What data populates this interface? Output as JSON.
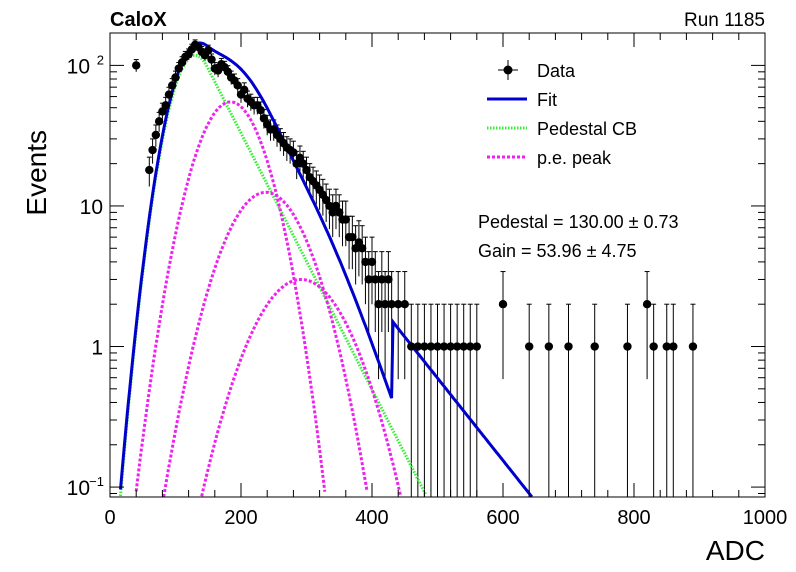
{
  "header": {
    "left_label": "CaloX",
    "right_label": "Run 1185"
  },
  "chart_data": {
    "type": "scatter",
    "xlabel": "ADC",
    "ylabel": "Events",
    "xlim": [
      0,
      1000
    ],
    "ylim": [
      0.085,
      170
    ],
    "y_scale": "log",
    "x_ticks": [
      "0",
      "200",
      "400",
      "600",
      "800",
      "1000"
    ],
    "y_ticks": [
      {
        "value": 0.1,
        "base": "10",
        "exp": "−1"
      },
      {
        "value": 1,
        "base": "1",
        "exp": ""
      },
      {
        "value": 10,
        "base": "10",
        "exp": ""
      },
      {
        "value": 100,
        "base": "10",
        "exp": "2"
      }
    ],
    "legend": {
      "placement": "top-right",
      "entries": [
        {
          "label": "Data",
          "style": "marker",
          "color": "#000000"
        },
        {
          "label": "Fit",
          "style": "solid",
          "color": "#0000cc"
        },
        {
          "label": "Pedestal CB",
          "style": "dotted",
          "color": "#33ee33"
        },
        {
          "label": "p.e. peak",
          "style": "dotted",
          "color": "#ee22ee"
        }
      ]
    },
    "fit_results": [
      "Pedestal = 130.00 ± 0.73",
      "Gain = 53.96 ± 4.75"
    ],
    "model": {
      "pedestal": 130.0,
      "gain": 53.96,
      "sigma_ped": 30,
      "ped_amplitude": 118,
      "pe_amplitudes": [
        55,
        12.5,
        3.0
      ],
      "tail_slope": 0.0135
    },
    "data": {
      "x": [
        40,
        60,
        65,
        70,
        75,
        80,
        85,
        90,
        95,
        100,
        105,
        110,
        115,
        120,
        125,
        130,
        135,
        140,
        145,
        150,
        155,
        160,
        165,
        170,
        175,
        180,
        185,
        190,
        195,
        200,
        205,
        210,
        215,
        220,
        225,
        230,
        235,
        240,
        245,
        250,
        255,
        260,
        265,
        270,
        275,
        280,
        285,
        290,
        295,
        300,
        305,
        310,
        315,
        320,
        325,
        330,
        335,
        340,
        345,
        350,
        355,
        360,
        365,
        370,
        375,
        380,
        385,
        390,
        395,
        400,
        405,
        410,
        415,
        420,
        425,
        430,
        440,
        450,
        460,
        470,
        480,
        490,
        500,
        510,
        520,
        530,
        540,
        550,
        560,
        600,
        640,
        670,
        700,
        740,
        790,
        820,
        830,
        850,
        860,
        890
      ],
      "y": [
        100,
        18,
        25,
        32,
        40,
        47,
        52,
        62,
        72,
        82,
        95,
        105,
        115,
        120,
        130,
        140,
        135,
        125,
        118,
        128,
        110,
        95,
        92,
        102,
        97,
        90,
        82,
        78,
        72,
        62,
        67,
        58,
        55,
        52,
        52,
        48,
        42,
        38,
        35,
        35,
        32,
        30,
        28,
        26,
        25,
        24,
        20,
        22,
        20,
        18,
        16,
        15,
        14,
        13,
        12,
        11,
        10,
        9,
        10,
        9,
        8,
        8,
        6,
        6,
        5,
        5.5,
        5,
        4,
        3,
        4,
        3,
        2,
        3,
        2,
        3,
        2,
        2,
        2,
        1,
        1,
        1,
        1,
        1,
        1,
        1,
        1,
        1,
        1,
        1,
        2,
        1,
        1,
        1,
        1,
        1,
        2,
        1,
        1,
        1,
        1
      ]
    }
  }
}
